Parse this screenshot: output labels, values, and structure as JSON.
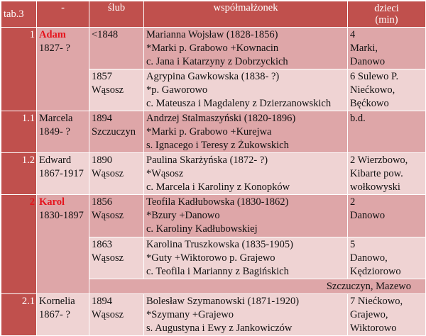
{
  "header": {
    "tab": "tab.3",
    "dash": "-",
    "slub": "ślub",
    "spouse": "współmałżonek",
    "children_l1": "dzieci",
    "children_l2": "(min)"
  },
  "rows": [
    {
      "num": "1",
      "person_name": "Adam",
      "person_years": "1827- ?",
      "slub": [
        "<1848"
      ],
      "spouse": [
        "Marianna Wojsław (1828-1856)",
        "*Marki p. Grabowo +Kownacin",
        "c. Jana i Katarzyny z Dobrzyckich"
      ],
      "children": [
        "4",
        "Marki,",
        "Danowo"
      ]
    },
    {
      "slub": [
        "1857",
        "Wąsosz"
      ],
      "spouse": [
        "Agrypina Gawkowska (1838- ?)",
        "*p. Gaworowo",
        "c. Mateusza i Magdaleny z Dzierzanowskich"
      ],
      "children": [
        "6 Sulewo P.",
        "Niećkowo,",
        "Bęćkowo"
      ]
    },
    {
      "num": "1.1",
      "person_name": "Marcela",
      "person_years": "1849- ?",
      "slub": [
        "1894",
        "Szczuczyn"
      ],
      "spouse": [
        "Andrzej Stalmaszyński (1820-1896)",
        "*Marki p. Grabowo +Kurejwa",
        "s. Ignacego i Teresy z Żukowskich"
      ],
      "children": [
        "b.d."
      ]
    },
    {
      "num": "1.2",
      "person_name": "Edward",
      "person_years": "1867-1917",
      "slub": [
        "1890",
        "Wąsosz"
      ],
      "spouse": [
        "Paulina Skarżyńska (1872- ?)",
        "*Wąsosz",
        "c. Marcela i Karoliny z Konopków"
      ],
      "children": [
        "2 Wierzbowo,",
        "Kibarte pow.",
        "wołkowyski"
      ]
    },
    {
      "num": "2",
      "person_name": "Karol",
      "person_years": "1830-1897",
      "slub": [
        "1856",
        "Wąsosz"
      ],
      "spouse": [
        "Teofila Kadłubowska (1830-1862)",
        "*Bzury +Danowo",
        "c. Karoliny Kadłubowskiej"
      ],
      "children": [
        "2",
        "Danowo"
      ]
    },
    {
      "slub": [
        "1863",
        "Wąsosz"
      ],
      "spouse": [
        "Karolina Truszkowska (1835-1905)",
        "*Guty +Wiktorowo p. Grajewo",
        "c. Teofila i Marianny z Bagińskich"
      ],
      "children": [
        "5",
        "Danowo,",
        "Kędziorowo"
      ]
    },
    {
      "note": "Szczuczyn, Mazewo"
    },
    {
      "num": "2.1",
      "person_name": "Kornelia",
      "person_years": "1867- ?",
      "slub": [
        "1894",
        "Wąsosz"
      ],
      "spouse": [
        "Bolesław Szymanowski (1871-1920)",
        "*Szymany +Grajewo",
        "s. Augustyna i Ewy z Jankowiczów"
      ],
      "children": [
        "7 Niećkowo,",
        "Grajewo,",
        "Wiktorowo"
      ]
    }
  ],
  "colors": {
    "header_red": "#c0504d",
    "row_dark": "#dea6a8",
    "row_light": "#efd3d3",
    "highlight_name": "#e5121b"
  }
}
